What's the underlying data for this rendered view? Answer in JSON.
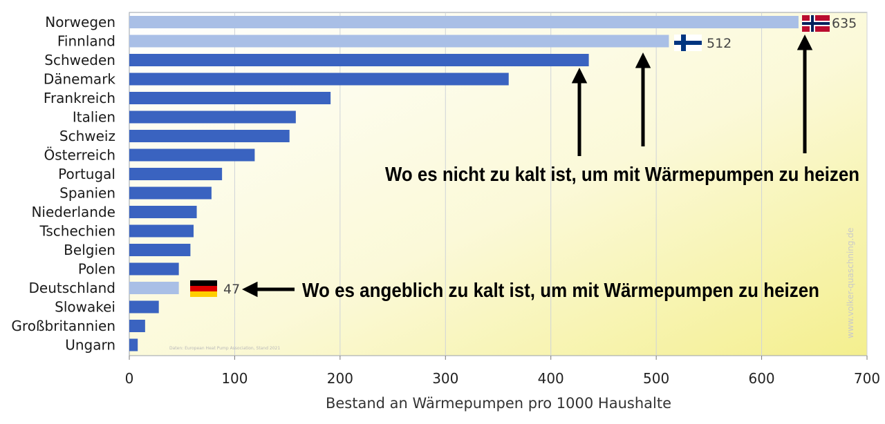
{
  "chart_data": {
    "type": "bar",
    "orientation": "horizontal",
    "categories": [
      "Norwegen",
      "Finnland",
      "Schweden",
      "Dänemark",
      "Frankreich",
      "Italien",
      "Schweiz",
      "Österreich",
      "Portugal",
      "Spanien",
      "Niederlande",
      "Tschechien",
      "Belgien",
      "Polen",
      "Deutschland",
      "Slowakei",
      "Großbritannien",
      "Ungarn"
    ],
    "values": [
      635,
      512,
      436,
      360,
      191,
      158,
      152,
      119,
      88,
      78,
      64,
      61,
      58,
      47,
      47,
      28,
      15,
      8
    ],
    "highlighted": [
      "Norwegen",
      "Finnland",
      "Deutschland"
    ],
    "data_labels": [
      {
        "category": "Norwegen",
        "text": "635",
        "flag": "norway-flag"
      },
      {
        "category": "Finnland",
        "text": "512",
        "flag": "finland-flag"
      },
      {
        "category": "Deutschland",
        "text": "47",
        "flag": "germany-flag"
      }
    ],
    "xlim": [
      0,
      700
    ],
    "xticks": [
      0,
      100,
      200,
      300,
      400,
      500,
      600,
      700
    ],
    "xlabel": "Bestand an Wärmepumpen pro 1000 Haushalte",
    "grid": "vertical",
    "colors": {
      "bar": "#3a63c0",
      "highlight": "#a9bfe6",
      "background_top": "#ffffff",
      "background_bottom": "#f6f29a"
    },
    "annotations": {
      "top": "Wo es nicht zu kalt ist, um mit Wärmepumpen zu heizen",
      "bottom": "Wo es angeblich zu kalt ist, um mit Wärmepumpen zu heizen"
    },
    "watermark": "www.volker-quaschning.de",
    "source_note": "Daten: European Heat Pump Association, Stand 2021"
  }
}
